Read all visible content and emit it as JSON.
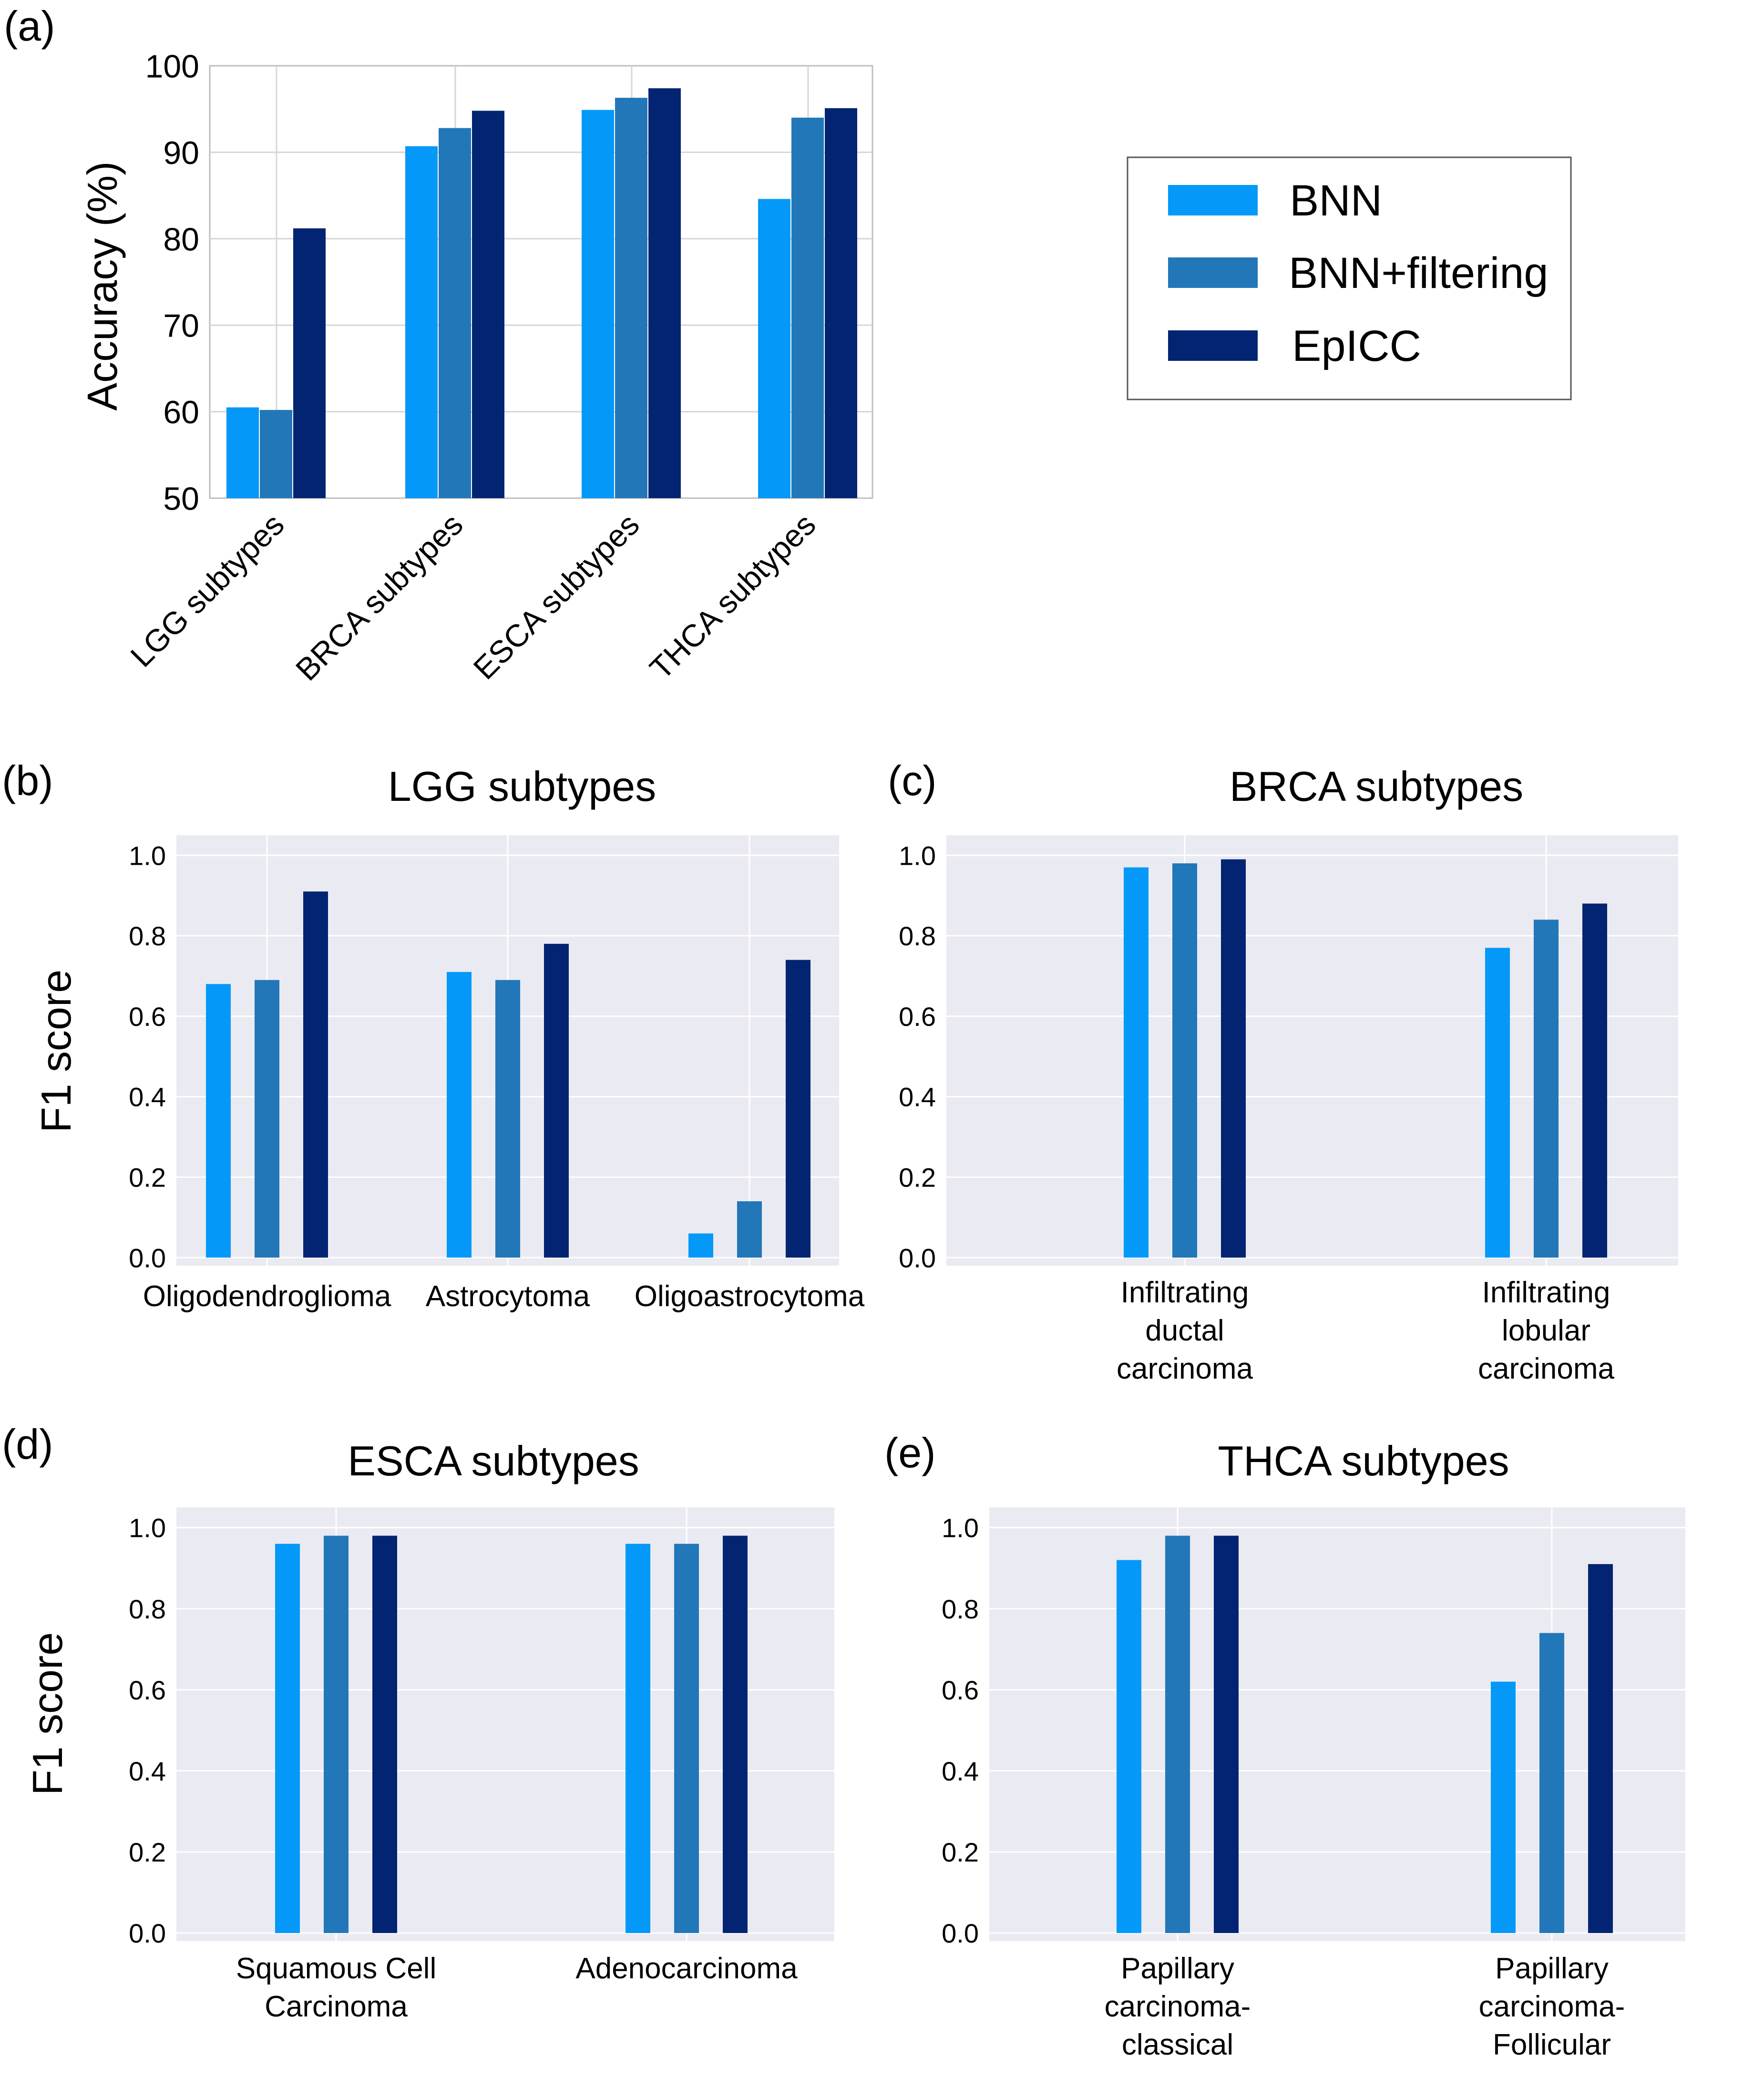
{
  "colors": {
    "BNN": "#0499f8",
    "BNN+filtering": "#2277b8",
    "EpICC": "#032472",
    "panel_bg_seaborn": "#eaeaf2",
    "grid": "#ffffff",
    "panel_a_grid": "#d6d6d6"
  },
  "legend": {
    "entries": [
      "BNN",
      "BNN+filtering",
      "EpICC"
    ],
    "placement": "right of panel (a)"
  },
  "chart_data": [
    {
      "panel": "(a)",
      "type": "bar",
      "title": "",
      "xlabel": "",
      "ylabel": "Accuracy (%)",
      "ylim": [
        50,
        100
      ],
      "yticks": [
        "50",
        "60",
        "70",
        "80",
        "90",
        "100"
      ],
      "grid": true,
      "xtick_rotation": 45,
      "categories": [
        "LGG subtypes",
        "BRCA subtypes",
        "ESCA subtypes",
        "THCA subtypes"
      ],
      "series": [
        {
          "name": "BNN",
          "values": [
            60.5,
            90.7,
            94.9,
            84.6
          ]
        },
        {
          "name": "BNN+filtering",
          "values": [
            60.2,
            92.8,
            96.3,
            94.0
          ]
        },
        {
          "name": "EpICC",
          "values": [
            81.2,
            94.8,
            97.4,
            95.1
          ]
        }
      ]
    },
    {
      "panel": "(b)",
      "type": "bar",
      "title": "LGG subtypes",
      "xlabel": "",
      "ylabel": "F1 score",
      "ylim": [
        -0.02,
        1.05
      ],
      "yticks": [
        "0.0",
        "0.2",
        "0.4",
        "0.6",
        "0.8",
        "1.0"
      ],
      "grid": true,
      "categories": [
        "Oligodendroglioma",
        "Astrocytoma",
        "Oligoastrocytoma"
      ],
      "series": [
        {
          "name": "BNN",
          "values": [
            0.68,
            0.71,
            0.06
          ]
        },
        {
          "name": "BNN+filtering",
          "values": [
            0.69,
            0.69,
            0.14
          ]
        },
        {
          "name": "EpICC",
          "values": [
            0.91,
            0.78,
            0.74
          ]
        }
      ]
    },
    {
      "panel": "(c)",
      "type": "bar",
      "title": "BRCA subtypes",
      "xlabel": "",
      "ylabel": "",
      "ylim": [
        -0.02,
        1.05
      ],
      "yticks": [
        "0.0",
        "0.2",
        "0.4",
        "0.6",
        "0.8",
        "1.0"
      ],
      "grid": true,
      "categories": [
        [
          "Infiltrating",
          "ductal",
          "carcinoma"
        ],
        [
          "Infiltrating",
          "lobular",
          "carcinoma"
        ]
      ],
      "series": [
        {
          "name": "BNN",
          "values": [
            0.97,
            0.77
          ]
        },
        {
          "name": "BNN+filtering",
          "values": [
            0.98,
            0.84
          ]
        },
        {
          "name": "EpICC",
          "values": [
            0.99,
            0.88
          ]
        }
      ]
    },
    {
      "panel": "(d)",
      "type": "bar",
      "title": "ESCA subtypes",
      "xlabel": "",
      "ylabel": "F1 score",
      "ylim": [
        -0.02,
        1.05
      ],
      "yticks": [
        "0.0",
        "0.2",
        "0.4",
        "0.6",
        "0.8",
        "1.0"
      ],
      "grid": true,
      "categories": [
        [
          "Squamous Cell",
          "Carcinoma"
        ],
        [
          "Adenocarcinoma"
        ]
      ],
      "series": [
        {
          "name": "BNN",
          "values": [
            0.96,
            0.96
          ]
        },
        {
          "name": "BNN+filtering",
          "values": [
            0.98,
            0.96
          ]
        },
        {
          "name": "EpICC",
          "values": [
            0.98,
            0.98
          ]
        }
      ]
    },
    {
      "panel": "(e)",
      "type": "bar",
      "title": "THCA subtypes",
      "xlabel": "",
      "ylabel": "",
      "ylim": [
        -0.02,
        1.05
      ],
      "yticks": [
        "0.0",
        "0.2",
        "0.4",
        "0.6",
        "0.8",
        "1.0"
      ],
      "grid": true,
      "categories": [
        [
          "Papillary",
          "carcinoma-",
          "classical"
        ],
        [
          "Papillary",
          "carcinoma-",
          "Follicular"
        ]
      ],
      "series": [
        {
          "name": "BNN",
          "values": [
            0.92,
            0.62
          ]
        },
        {
          "name": "BNN+filtering",
          "values": [
            0.98,
            0.74
          ]
        },
        {
          "name": "EpICC",
          "values": [
            0.98,
            0.91
          ]
        }
      ]
    }
  ]
}
